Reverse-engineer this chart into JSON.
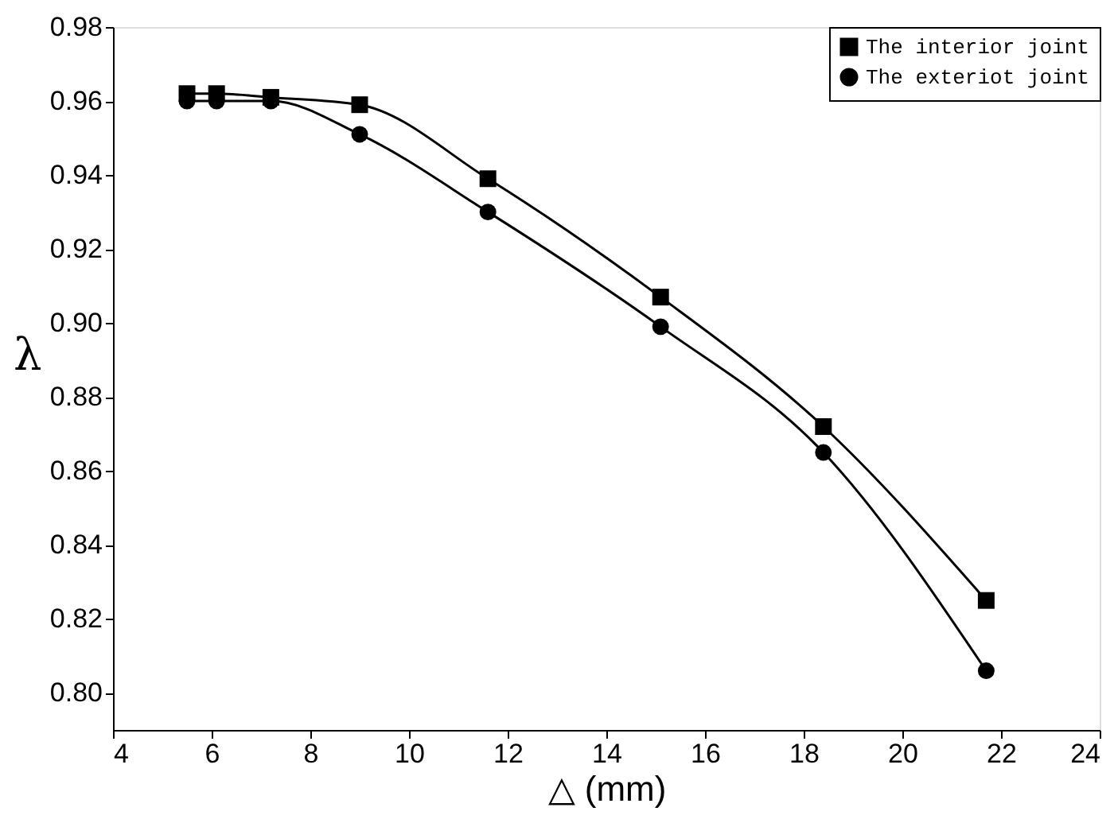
{
  "chart_data": {
    "type": "line",
    "xlabel": "△ (mm)",
    "ylabel": "λ",
    "x": [
      5.5,
      6.1,
      7.2,
      9.0,
      11.6,
      15.1,
      18.4,
      21.7
    ],
    "series": [
      {
        "name": "The interior joint",
        "color": "#000000",
        "marker": "square",
        "values": [
          0.962,
          0.962,
          0.961,
          0.959,
          0.939,
          0.907,
          0.872,
          0.825
        ]
      },
      {
        "name": "The exteriot joint",
        "color": "#000000",
        "marker": "circle",
        "values": [
          0.96,
          0.96,
          0.96,
          0.951,
          0.93,
          0.899,
          0.865,
          0.806
        ]
      }
    ],
    "xlim": [
      4,
      24
    ],
    "xticks": [
      4,
      6,
      8,
      10,
      12,
      14,
      16,
      18,
      20,
      22,
      24
    ],
    "ylim": [
      0.79,
      0.98
    ],
    "yticks": [
      {
        "value": 0.8,
        "label": "0.80"
      },
      0.82,
      0.84,
      0.86,
      0.88,
      {
        "value": 0.9,
        "label": "0.90"
      },
      0.92,
      0.94,
      0.96,
      0.98
    ],
    "grid": false,
    "legend": "top right",
    "line_style": "solid"
  }
}
